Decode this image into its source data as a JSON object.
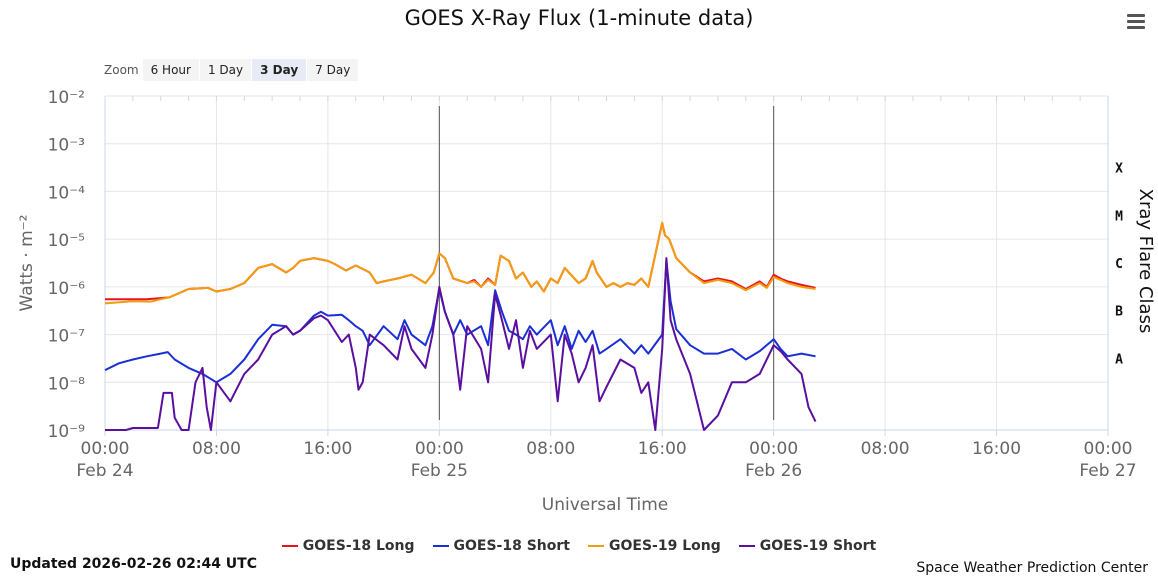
{
  "title": "GOES X-Ray Flux (1-minute data)",
  "menu_icon": "hamburger-menu-icon",
  "zoom": {
    "label": "Zoom",
    "buttons": [
      "6 Hour",
      "1 Day",
      "3 Day",
      "7 Day"
    ],
    "selected": "3 Day"
  },
  "footer": {
    "updated": "Updated 2026-02-26 02:44 UTC",
    "credit": "Space Weather Prediction Center"
  },
  "chart_data": {
    "type": "line",
    "title": "GOES X-Ray Flux (1-minute data)",
    "xlabel": "Universal Time",
    "ylabel": "Watts · m⁻²",
    "y2label": "Xray Flare Class",
    "yscale": "log",
    "ylim": [
      1e-09,
      0.01
    ],
    "xlim_hours": [
      0,
      72
    ],
    "y_ticks": [
      "10⁻⁹",
      "10⁻⁸",
      "10⁻⁷",
      "10⁻⁶",
      "10⁻⁵",
      "10⁻⁴",
      "10⁻³",
      "10⁻²"
    ],
    "x_ticks": [
      {
        "hour": 0,
        "time": "00:00",
        "date": "Feb 24"
      },
      {
        "hour": 8,
        "time": "08:00",
        "date": ""
      },
      {
        "hour": 16,
        "time": "16:00",
        "date": ""
      },
      {
        "hour": 24,
        "time": "00:00",
        "date": "Feb 25"
      },
      {
        "hour": 32,
        "time": "08:00",
        "date": ""
      },
      {
        "hour": 40,
        "time": "16:00",
        "date": ""
      },
      {
        "hour": 48,
        "time": "00:00",
        "date": "Feb 26"
      },
      {
        "hour": 56,
        "time": "08:00",
        "date": ""
      },
      {
        "hour": 64,
        "time": "16:00",
        "date": ""
      },
      {
        "hour": 72,
        "time": "00:00",
        "date": "Feb 27"
      }
    ],
    "flare_classes": [
      {
        "label": "X",
        "flux": 0.0001
      },
      {
        "label": "M",
        "flux": 1e-05
      },
      {
        "label": "C",
        "flux": 1e-06
      },
      {
        "label": "B",
        "flux": 1e-07
      },
      {
        "label": "A",
        "flux": 1e-08
      }
    ],
    "day_markers_hours": [
      24,
      48
    ],
    "grid": true,
    "legend_position": "bottom",
    "series": [
      {
        "name": "GOES-18 Long",
        "color": "#e8131d",
        "hours": [
          0,
          3,
          4,
          4.6,
          6,
          7.4,
          8,
          9,
          10,
          11,
          12,
          13,
          13.5,
          14,
          15,
          16,
          16.5,
          17.3,
          18,
          19,
          19.5,
          20,
          21,
          22,
          23,
          23.6,
          24,
          24.4,
          25,
          26,
          26.5,
          27,
          27.5,
          28,
          28.4,
          29,
          29.5,
          30,
          30.6,
          31,
          31.5,
          32,
          32.5,
          33,
          34,
          34.5,
          35,
          35.3,
          36,
          36.5,
          37,
          37.5,
          38,
          38.5,
          39,
          40,
          40.2,
          40.5,
          41,
          42,
          43,
          44,
          45,
          46,
          47,
          47.5,
          48,
          48.5,
          49,
          50,
          51
        ],
        "values": [
          5.5e-07,
          5.5e-07,
          5.8e-07,
          6e-07,
          9e-07,
          9.5e-07,
          8e-07,
          9e-07,
          1.2e-06,
          2.5e-06,
          3e-06,
          2e-06,
          2.5e-06,
          3.5e-06,
          4e-06,
          3.5e-06,
          3e-06,
          2.2e-06,
          2.8e-06,
          2e-06,
          1.2e-06,
          1.3e-06,
          1.5e-06,
          1.8e-06,
          1.2e-06,
          2e-06,
          5e-06,
          4e-06,
          1.5e-06,
          1.2e-06,
          1.4e-06,
          1e-06,
          1.5e-06,
          1.1e-06,
          4.5e-06,
          3.5e-06,
          1.5e-06,
          2e-06,
          1e-06,
          1.3e-06,
          8e-07,
          1.5e-06,
          1.2e-06,
          2.5e-06,
          1.2e-06,
          1.5e-06,
          3.5e-06,
          2e-06,
          1e-06,
          1.2e-06,
          1e-06,
          1.2e-06,
          1.1e-06,
          1.5e-06,
          1e-06,
          2.2e-05,
          1.2e-05,
          1e-05,
          4e-06,
          2e-06,
          1.3e-06,
          1.5e-06,
          1.3e-06,
          9e-07,
          1.3e-06,
          1e-06,
          1.8e-06,
          1.5e-06,
          1.3e-06,
          1.1e-06,
          9.5e-07
        ]
      },
      {
        "name": "GOES-18 Short",
        "color": "#1a2fd6",
        "hours": [
          0,
          1,
          2,
          3,
          4,
          4.5,
          5,
          6,
          7,
          8,
          9,
          10,
          11,
          12,
          13,
          13.5,
          14,
          15,
          15.5,
          16,
          17,
          17.5,
          18,
          18.5,
          19,
          20,
          21,
          21.5,
          22,
          23,
          23.5,
          24,
          24.4,
          25,
          25.5,
          26,
          27,
          27.5,
          28,
          28.5,
          29,
          29.5,
          30,
          30.5,
          31,
          32,
          32.5,
          33,
          33.5,
          34,
          34.5,
          35,
          35.5,
          36,
          37,
          38,
          38.5,
          39,
          40,
          40.3,
          40.6,
          41,
          42,
          43,
          44,
          45,
          46,
          47,
          48,
          48.5,
          49,
          50,
          51
        ],
        "values": [
          1.8e-08,
          2.5e-08,
          3e-08,
          3.5e-08,
          4e-08,
          4.3e-08,
          3e-08,
          2e-08,
          1.5e-08,
          1e-08,
          1.5e-08,
          3e-08,
          8e-08,
          1.6e-07,
          1.5e-07,
          1e-07,
          1.2e-07,
          2.5e-07,
          3e-07,
          2.5e-07,
          2.6e-07,
          2e-07,
          1.5e-07,
          1.2e-07,
          6e-08,
          1.5e-07,
          8e-08,
          2e-07,
          1e-07,
          6e-08,
          1.5e-07,
          9e-07,
          3e-07,
          1e-07,
          2e-07,
          1e-07,
          1.5e-07,
          6e-08,
          8.5e-07,
          3e-07,
          1.2e-07,
          1e-07,
          8e-08,
          1.5e-07,
          1e-07,
          2e-07,
          6e-08,
          1.5e-07,
          5e-08,
          1.2e-07,
          7e-08,
          1.2e-07,
          4e-08,
          5e-08,
          8e-08,
          4e-08,
          6e-08,
          4e-08,
          1e-07,
          3.5e-06,
          5e-07,
          1.3e-07,
          6e-08,
          4e-08,
          4e-08,
          5e-08,
          3e-08,
          4.5e-08,
          8e-08,
          5e-08,
          3.5e-08,
          4e-08,
          3.5e-08
        ]
      },
      {
        "name": "GOES-19 Long",
        "color": "#f39c12",
        "hours": [
          0,
          2,
          3.3,
          4,
          4.6,
          6,
          7.4,
          8,
          9,
          10,
          11,
          12,
          13,
          13.5,
          14,
          15,
          16,
          16.5,
          17.3,
          18,
          19,
          19.5,
          20,
          21,
          22,
          23,
          23.6,
          24,
          24.4,
          25,
          26,
          26.5,
          27,
          27.5,
          28,
          28.4,
          29,
          29.5,
          30,
          30.6,
          31,
          31.5,
          32,
          32.5,
          33,
          34,
          34.5,
          35,
          35.3,
          36,
          36.5,
          37,
          37.5,
          38,
          38.5,
          39,
          40,
          40.2,
          40.5,
          41,
          42,
          43,
          44,
          45,
          46,
          47,
          47.5,
          48,
          48.5,
          49,
          50,
          51
        ],
        "values": [
          4.5e-07,
          5e-07,
          4.9e-07,
          5.5e-07,
          6e-07,
          9e-07,
          9.5e-07,
          8e-07,
          9e-07,
          1.2e-06,
          2.5e-06,
          3e-06,
          2e-06,
          2.5e-06,
          3.5e-06,
          4e-06,
          3.5e-06,
          3e-06,
          2.2e-06,
          2.8e-06,
          2e-06,
          1.2e-06,
          1.3e-06,
          1.5e-06,
          1.8e-06,
          1.2e-06,
          2e-06,
          5e-06,
          4e-06,
          1.5e-06,
          1.2e-06,
          1.3e-06,
          1e-06,
          1.4e-06,
          1.1e-06,
          4.5e-06,
          3.5e-06,
          1.5e-06,
          2e-06,
          1e-06,
          1.3e-06,
          8e-07,
          1.5e-06,
          1.2e-06,
          2.5e-06,
          1.2e-06,
          1.5e-06,
          3.5e-06,
          2e-06,
          1e-06,
          1.2e-06,
          1e-06,
          1.2e-06,
          1.1e-06,
          1.5e-06,
          1e-06,
          2.2e-05,
          1.2e-05,
          1e-05,
          4e-06,
          2e-06,
          1.2e-06,
          1.4e-06,
          1.2e-06,
          8.5e-07,
          1.2e-06,
          9.5e-07,
          1.6e-06,
          1.4e-06,
          1.2e-06,
          1e-06,
          9e-07
        ]
      },
      {
        "name": "GOES-19 Short",
        "color": "#5a0f9e",
        "hours": [
          0,
          1.5,
          2,
          3.8,
          4.2,
          4.8,
          5,
          5.5,
          6,
          6.5,
          7,
          7.3,
          7.6,
          8,
          9,
          10,
          11,
          12,
          13,
          13.5,
          14,
          15,
          15.5,
          16,
          17,
          17.5,
          18,
          18.2,
          18.5,
          19,
          20,
          21,
          21.5,
          22,
          23,
          23.5,
          24,
          24.4,
          25,
          25.5,
          26,
          27,
          27.5,
          28,
          28.5,
          29,
          29.5,
          30,
          30.5,
          31,
          32,
          32.5,
          33,
          33.5,
          34,
          34.5,
          35,
          35.5,
          36,
          37,
          38,
          38.5,
          39,
          39.5,
          40,
          40.3,
          40.6,
          41,
          42,
          43,
          44,
          45,
          46,
          47,
          48,
          48.5,
          49,
          50,
          50.5,
          51
        ],
        "values": [
          1e-09,
          1e-09,
          1.1e-09,
          1.1e-09,
          6e-09,
          6e-09,
          1.8e-09,
          8e-10,
          1e-09,
          1e-08,
          2e-08,
          3e-09,
          8e-10,
          1e-08,
          4e-09,
          1.5e-08,
          3e-08,
          1e-07,
          1.5e-07,
          1e-07,
          1.2e-07,
          2.2e-07,
          2.5e-07,
          2e-07,
          7e-08,
          1e-07,
          2e-08,
          7e-09,
          1e-08,
          1e-07,
          6e-08,
          3e-08,
          1.5e-07,
          5e-08,
          2e-08,
          1e-07,
          1e-06,
          3e-07,
          1e-07,
          7e-09,
          1.5e-07,
          5e-08,
          1e-08,
          7e-07,
          2e-07,
          5e-08,
          2e-07,
          2e-08,
          1.2e-07,
          5e-08,
          1e-07,
          4e-09,
          1e-07,
          4e-08,
          1e-08,
          2e-08,
          6e-08,
          4e-09,
          8e-09,
          3e-08,
          2e-08,
          6e-09,
          1e-08,
          1e-09,
          5e-08,
          4e-06,
          2e-07,
          8e-08,
          1.5e-08,
          1e-09,
          2e-09,
          1e-08,
          1e-08,
          1.5e-08,
          6e-08,
          4.5e-08,
          3e-08,
          1.5e-08,
          3e-09,
          1.5e-09
        ]
      }
    ]
  }
}
